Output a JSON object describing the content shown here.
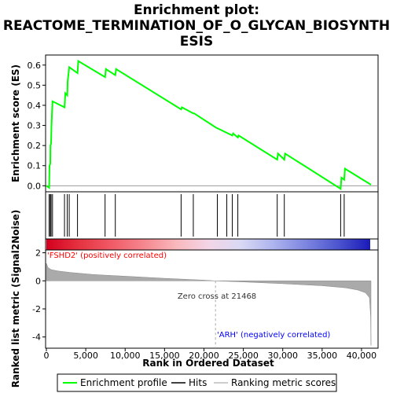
{
  "chart_data": {
    "type": "line",
    "title_lines": [
      "Enrichment plot:",
      "REACTOME_TERMINATION_OF_O_GLYCAN_BIOSYNTH",
      "ESIS"
    ],
    "es_panel": {
      "ylabel": "Enrichment score (ES)",
      "ylim": [
        -0.03,
        0.65
      ],
      "yticks": [
        0.0,
        0.1,
        0.2,
        0.3,
        0.4,
        0.5,
        0.6
      ],
      "ytick_labels": [
        "0.0",
        "0.1",
        "0.2",
        "0.3",
        "0.4",
        "0.5",
        "0.6"
      ],
      "series": [
        {
          "name": "Enrichment profile",
          "color": "#00ff00",
          "x": [
            0,
            350,
            400,
            500,
            520,
            600,
            650,
            780,
            2300,
            2400,
            2650,
            2700,
            2900,
            3950,
            4050,
            7450,
            7550,
            8750,
            8850,
            17100,
            17200,
            18650,
            18750,
            21500,
            23600,
            23700,
            24300,
            24400,
            29300,
            29400,
            30200,
            30300,
            37350,
            37450,
            37800,
            37900,
            41200
          ],
          "y": [
            0.0,
            -0.01,
            0.1,
            0.11,
            0.2,
            0.21,
            0.3,
            0.42,
            0.39,
            0.46,
            0.45,
            0.52,
            0.59,
            0.56,
            0.62,
            0.54,
            0.58,
            0.55,
            0.58,
            0.38,
            0.39,
            0.36,
            0.36,
            0.29,
            0.25,
            0.26,
            0.24,
            0.25,
            0.13,
            0.16,
            0.13,
            0.16,
            -0.015,
            0.04,
            0.03,
            0.085,
            0.005
          ]
        }
      ]
    },
    "hits": [
      350,
      500,
      600,
      780,
      2300,
      2650,
      2900,
      3950,
      7450,
      8750,
      17100,
      18650,
      21700,
      22900,
      23600,
      24300,
      29300,
      30200,
      37350,
      37800
    ],
    "metric_panel": {
      "ylabel": "Ranked list metric (Signal2Noise)",
      "ylim": [
        -4.8,
        2.2
      ],
      "yticks": [
        -4,
        -2,
        0,
        2
      ],
      "ytick_labels": [
        "-4",
        "-2",
        "0",
        "2"
      ],
      "profile_x": [
        0,
        200,
        600,
        1500,
        3000,
        6000,
        10000,
        15000,
        20000,
        21468,
        25000,
        30000,
        35000,
        38000,
        39500,
        40500,
        41000,
        41150,
        41200
      ],
      "profile_y": [
        1.25,
        0.95,
        0.8,
        0.7,
        0.6,
        0.45,
        0.33,
        0.18,
        0.05,
        0.0,
        -0.08,
        -0.2,
        -0.35,
        -0.5,
        -0.65,
        -0.85,
        -1.2,
        -2.5,
        -4.6
      ]
    },
    "xaxis": {
      "label": "Rank in Ordered Dataset",
      "xlim": [
        0,
        42000
      ],
      "ticks": [
        0,
        5000,
        10000,
        15000,
        20000,
        25000,
        30000,
        35000,
        40000
      ],
      "tick_labels": [
        "0",
        "5,000",
        "10,000",
        "15,000",
        "20,000",
        "25,000",
        "30,000",
        "35,000",
        "40,000"
      ]
    },
    "annotations": {
      "positive_label": "'FSHD2' (positively correlated)",
      "negative_label": "'ARH' (negatively correlated)",
      "zero_cross_label": "Zero cross at 21468",
      "zero_cross": 21468
    },
    "legend": {
      "placement": "bottom",
      "items": [
        {
          "label": "Enrichment profile",
          "kind": "line-green"
        },
        {
          "label": "Hits",
          "kind": "line-black"
        },
        {
          "label": "Ranking metric scores",
          "kind": "line-gray"
        }
      ]
    },
    "colors": {
      "profile": "#00ff00",
      "hits": "#000000",
      "metric_fill": "#aaaaaa",
      "positive_text": "#ff0000",
      "negative_text": "#0000ff"
    },
    "heatmap_gradient": [
      "#d4001f",
      "#e53240",
      "#f05a66",
      "#f5868f",
      "#f9b8bc",
      "#f3d5e6",
      "#d9d9f4",
      "#aeb4ee",
      "#7d86e0",
      "#4d55cf",
      "#1a1ab8"
    ]
  }
}
